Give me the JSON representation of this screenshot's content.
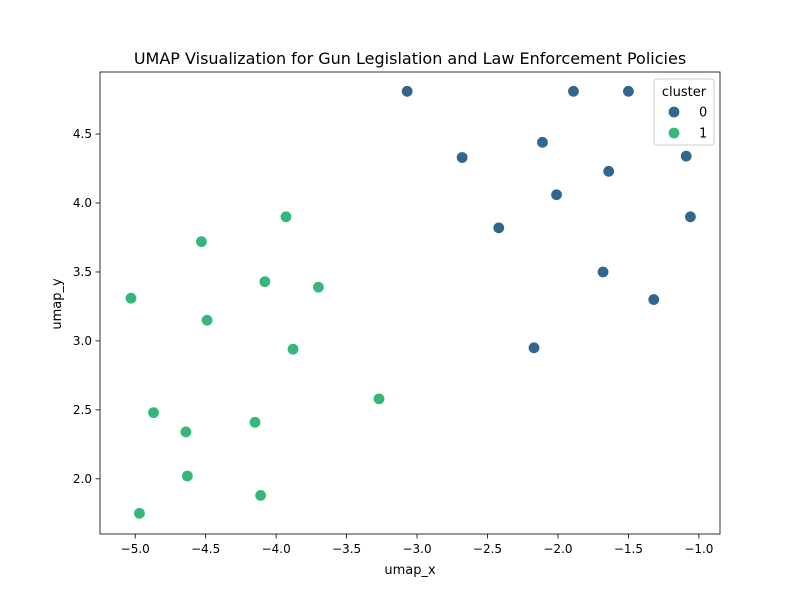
{
  "chart_data": {
    "type": "scatter",
    "title": "UMAP Visualization for Gun Legislation and Law Enforcement Policies",
    "xlabel": "umap_x",
    "ylabel": "umap_y",
    "xlim": [
      -5.25,
      -0.85
    ],
    "ylim": [
      1.6,
      4.95
    ],
    "xticks": [
      -5.0,
      -4.5,
      -4.0,
      -3.5,
      -3.0,
      -2.5,
      -2.0,
      -1.5,
      -1.0
    ],
    "xtick_labels": [
      "−5.0",
      "−4.5",
      "−4.0",
      "−3.5",
      "−3.0",
      "−2.5",
      "−2.0",
      "−1.5",
      "−1.0"
    ],
    "yticks": [
      2.0,
      2.5,
      3.0,
      3.5,
      4.0,
      4.5
    ],
    "ytick_labels": [
      "2.0",
      "2.5",
      "3.0",
      "3.5",
      "4.0",
      "4.5"
    ],
    "grid": false,
    "legend": {
      "title": "cluster",
      "position": "top-right"
    },
    "series": [
      {
        "name": "0",
        "color": "#30678d",
        "points": [
          {
            "x": -3.07,
            "y": 4.81
          },
          {
            "x": -1.89,
            "y": 4.81
          },
          {
            "x": -1.5,
            "y": 4.81
          },
          {
            "x": -2.68,
            "y": 4.33
          },
          {
            "x": -2.11,
            "y": 4.44
          },
          {
            "x": -1.09,
            "y": 4.34
          },
          {
            "x": -1.64,
            "y": 4.23
          },
          {
            "x": -2.01,
            "y": 4.06
          },
          {
            "x": -1.06,
            "y": 3.9
          },
          {
            "x": -2.42,
            "y": 3.82
          },
          {
            "x": -1.68,
            "y": 3.5
          },
          {
            "x": -1.32,
            "y": 3.3
          },
          {
            "x": -2.17,
            "y": 2.95
          }
        ]
      },
      {
        "name": "1",
        "color": "#35b779",
        "points": [
          {
            "x": -3.93,
            "y": 3.9
          },
          {
            "x": -4.53,
            "y": 3.72
          },
          {
            "x": -4.08,
            "y": 3.43
          },
          {
            "x": -3.7,
            "y": 3.39
          },
          {
            "x": -5.03,
            "y": 3.31
          },
          {
            "x": -4.49,
            "y": 3.15
          },
          {
            "x": -3.88,
            "y": 2.94
          },
          {
            "x": -3.27,
            "y": 2.58
          },
          {
            "x": -4.87,
            "y": 2.48
          },
          {
            "x": -4.15,
            "y": 2.41
          },
          {
            "x": -4.64,
            "y": 2.34
          },
          {
            "x": -4.63,
            "y": 2.02
          },
          {
            "x": -4.11,
            "y": 1.88
          },
          {
            "x": -4.97,
            "y": 1.75
          }
        ]
      }
    ]
  }
}
